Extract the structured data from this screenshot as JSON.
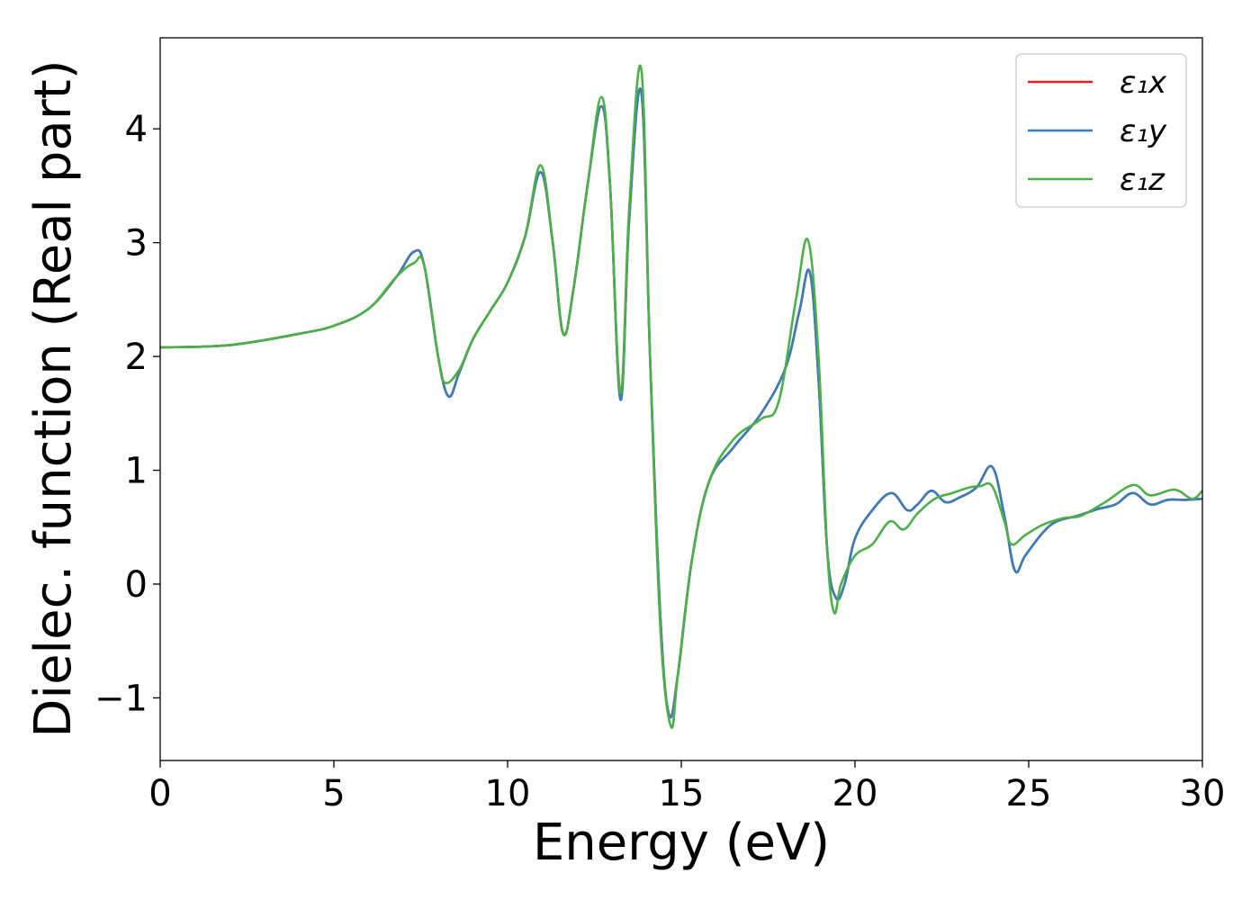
{
  "chart_data": {
    "type": "line",
    "xlabel": "Energy (eV)",
    "ylabel": "Dielec. function (Real part)",
    "xlim": [
      0,
      30
    ],
    "ylim": [
      -1.55,
      4.8
    ],
    "xticks": [
      0,
      5,
      10,
      15,
      20,
      25,
      30
    ],
    "xtick_labels": [
      "0",
      "5",
      "10",
      "15",
      "20",
      "25",
      "30"
    ],
    "yticks": [
      -1,
      0,
      1,
      2,
      3,
      4
    ],
    "ytick_labels": [
      "−1",
      "0",
      "1",
      "2",
      "3",
      "4"
    ],
    "grid": false,
    "legend_position": "top-right",
    "series": [
      {
        "name": "ε1x",
        "legend_label": "ε₁x",
        "color": "#e41a1c",
        "x": [
          0,
          2,
          4,
          5,
          6,
          6.8,
          7.3,
          7.6,
          8.0,
          8.3,
          8.6,
          9.0,
          9.5,
          10.0,
          10.5,
          10.95,
          11.3,
          11.6,
          11.9,
          12.3,
          12.7,
          12.95,
          13.25,
          13.5,
          13.85,
          14.1,
          14.4,
          14.65,
          14.9,
          15.3,
          15.8,
          16.5,
          17.3,
          18.0,
          18.4,
          18.7,
          18.95,
          19.2,
          19.45,
          19.7,
          20.0,
          20.5,
          21.05,
          21.5,
          21.8,
          22.2,
          22.6,
          23.0,
          23.5,
          23.95,
          24.3,
          24.6,
          24.9,
          25.4,
          25.8,
          26.4,
          27.0,
          27.5,
          28.0,
          28.5,
          29.0,
          29.5,
          30.0
        ],
        "y": [
          2.08,
          2.1,
          2.2,
          2.27,
          2.42,
          2.7,
          2.92,
          2.8,
          2.0,
          1.65,
          1.85,
          2.15,
          2.4,
          2.65,
          3.05,
          3.62,
          3.0,
          2.2,
          2.6,
          3.5,
          4.2,
          3.5,
          1.62,
          3.2,
          4.32,
          2.0,
          -0.3,
          -1.15,
          -0.8,
          0.2,
          0.9,
          1.2,
          1.5,
          1.9,
          2.4,
          2.74,
          1.8,
          0.3,
          -0.12,
          0.0,
          0.4,
          0.65,
          0.8,
          0.65,
          0.7,
          0.82,
          0.72,
          0.76,
          0.85,
          1.03,
          0.6,
          0.12,
          0.25,
          0.45,
          0.55,
          0.6,
          0.66,
          0.7,
          0.8,
          0.7,
          0.74,
          0.74,
          0.75
        ]
      },
      {
        "name": "ε1y",
        "legend_label": "ε₁y",
        "color": "#377eb8",
        "x": [
          0,
          2,
          4,
          5,
          6,
          6.8,
          7.3,
          7.6,
          8.0,
          8.3,
          8.6,
          9.0,
          9.5,
          10.0,
          10.5,
          10.95,
          11.3,
          11.6,
          11.9,
          12.3,
          12.7,
          12.95,
          13.25,
          13.5,
          13.85,
          14.1,
          14.4,
          14.65,
          14.9,
          15.3,
          15.8,
          16.5,
          17.3,
          18.0,
          18.4,
          18.7,
          18.95,
          19.2,
          19.45,
          19.7,
          20.0,
          20.5,
          21.05,
          21.5,
          21.8,
          22.2,
          22.6,
          23.0,
          23.5,
          23.95,
          24.3,
          24.6,
          24.9,
          25.4,
          25.8,
          26.4,
          27.0,
          27.5,
          28.0,
          28.5,
          29.0,
          29.5,
          30.0
        ],
        "y": [
          2.08,
          2.1,
          2.2,
          2.27,
          2.42,
          2.7,
          2.92,
          2.8,
          2.0,
          1.65,
          1.85,
          2.15,
          2.4,
          2.65,
          3.05,
          3.62,
          3.0,
          2.2,
          2.6,
          3.5,
          4.2,
          3.5,
          1.62,
          3.2,
          4.32,
          2.0,
          -0.3,
          -1.15,
          -0.8,
          0.2,
          0.9,
          1.2,
          1.5,
          1.9,
          2.4,
          2.74,
          1.8,
          0.3,
          -0.12,
          0.0,
          0.4,
          0.65,
          0.8,
          0.65,
          0.7,
          0.82,
          0.72,
          0.76,
          0.85,
          1.03,
          0.6,
          0.12,
          0.25,
          0.45,
          0.55,
          0.6,
          0.66,
          0.7,
          0.8,
          0.7,
          0.74,
          0.74,
          0.75
        ]
      },
      {
        "name": "ε1z",
        "legend_label": "ε₁z",
        "color": "#4daf4a",
        "x": [
          0,
          2,
          4,
          5,
          6,
          6.8,
          7.3,
          7.6,
          8.0,
          8.2,
          8.6,
          9.0,
          9.5,
          10.0,
          10.5,
          10.95,
          11.3,
          11.6,
          11.9,
          12.3,
          12.7,
          12.95,
          13.25,
          13.5,
          13.85,
          14.1,
          14.4,
          14.7,
          14.9,
          15.3,
          15.8,
          16.5,
          17.3,
          17.8,
          18.3,
          18.65,
          18.95,
          19.2,
          19.4,
          19.6,
          20.0,
          20.5,
          21.0,
          21.4,
          21.8,
          22.3,
          22.8,
          23.3,
          23.6,
          23.95,
          24.3,
          24.5,
          24.9,
          25.4,
          26.0,
          26.5,
          27.2,
          28.0,
          28.5,
          29.2,
          29.7,
          30.0
        ],
        "y": [
          2.08,
          2.1,
          2.2,
          2.27,
          2.42,
          2.7,
          2.82,
          2.8,
          2.0,
          1.77,
          1.88,
          2.15,
          2.4,
          2.65,
          3.05,
          3.68,
          3.0,
          2.2,
          2.6,
          3.5,
          4.28,
          3.5,
          1.68,
          3.3,
          4.52,
          2.0,
          -0.4,
          -1.25,
          -0.8,
          0.2,
          0.9,
          1.27,
          1.45,
          1.6,
          2.5,
          3.02,
          2.0,
          0.3,
          -0.25,
          0.0,
          0.25,
          0.35,
          0.55,
          0.48,
          0.62,
          0.75,
          0.8,
          0.85,
          0.86,
          0.86,
          0.55,
          0.35,
          0.43,
          0.52,
          0.58,
          0.6,
          0.72,
          0.87,
          0.78,
          0.83,
          0.75,
          0.82
        ]
      }
    ]
  }
}
